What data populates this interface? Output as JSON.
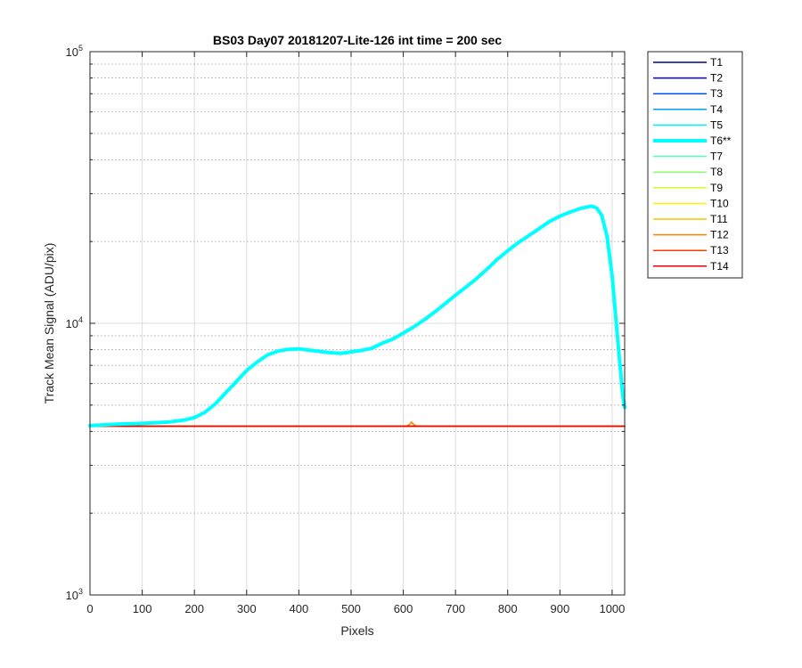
{
  "chart_data": {
    "type": "line",
    "title": "BS03 Day07 20181207-Lite-126 int time = 200 sec",
    "xlabel": "Pixels",
    "ylabel": "Track Mean Signal (ADU/pix)",
    "xlim": [
      0,
      1024
    ],
    "ylim": [
      1000,
      100000
    ],
    "y_scale": "log",
    "x_ticks": [
      0,
      100,
      200,
      300,
      400,
      500,
      600,
      700,
      800,
      900,
      1000
    ],
    "y_ticks": [
      {
        "value": 1000,
        "base": "10",
        "exp": "3"
      },
      {
        "value": 10000,
        "base": "10",
        "exp": "4"
      },
      {
        "value": 100000,
        "base": "10",
        "exp": "5"
      }
    ],
    "grid": true,
    "legend_position": "outside-right",
    "highlight_series": "T6**",
    "series": [
      {
        "name": "T1",
        "color": "#00008f",
        "x": [
          0,
          1024
        ],
        "y": [
          4180,
          4180
        ]
      },
      {
        "name": "T2",
        "color": "#0000ef",
        "x": [
          0,
          1024
        ],
        "y": [
          4180,
          4180
        ]
      },
      {
        "name": "T3",
        "color": "#004fff",
        "x": [
          0,
          1024
        ],
        "y": [
          4180,
          4180
        ]
      },
      {
        "name": "T4",
        "color": "#009fff",
        "x": [
          0,
          1024
        ],
        "y": [
          4180,
          4180
        ]
      },
      {
        "name": "T5",
        "color": "#00efff",
        "x": [
          0,
          1024
        ],
        "y": [
          4180,
          4180
        ]
      },
      {
        "name": "T6**",
        "color": "#00ffff",
        "x": [
          0,
          50,
          100,
          150,
          180,
          200,
          220,
          240,
          260,
          280,
          300,
          320,
          340,
          360,
          380,
          400,
          420,
          440,
          460,
          480,
          500,
          520,
          540,
          560,
          580,
          600,
          620,
          640,
          660,
          680,
          700,
          720,
          740,
          760,
          780,
          800,
          820,
          840,
          860,
          880,
          900,
          920,
          940,
          960,
          970,
          980,
          990,
          1000,
          1010,
          1020,
          1024
        ],
        "y": [
          4200,
          4250,
          4280,
          4330,
          4400,
          4500,
          4700,
          5050,
          5550,
          6100,
          6700,
          7200,
          7650,
          7900,
          8020,
          8050,
          7970,
          7880,
          7800,
          7750,
          7850,
          7950,
          8100,
          8450,
          8750,
          9200,
          9700,
          10300,
          11000,
          11800,
          12700,
          13600,
          14600,
          15800,
          17200,
          18500,
          19800,
          21000,
          22300,
          23700,
          24800,
          25700,
          26500,
          27000,
          26600,
          25000,
          21000,
          15000,
          9000,
          5500,
          4900
        ]
      },
      {
        "name": "T7",
        "color": "#4fffaf",
        "x": [
          0,
          1024
        ],
        "y": [
          4180,
          4180
        ]
      },
      {
        "name": "T8",
        "color": "#8fff6f",
        "x": [
          0,
          1024
        ],
        "y": [
          4180,
          4180
        ]
      },
      {
        "name": "T9",
        "color": "#cfff2f",
        "x": [
          0,
          1024
        ],
        "y": [
          4180,
          4180
        ]
      },
      {
        "name": "T10",
        "color": "#ffef00",
        "x": [
          0,
          1024
        ],
        "y": [
          4180,
          4180
        ]
      },
      {
        "name": "T11",
        "color": "#ffbf00",
        "x": [
          0,
          1024
        ],
        "y": [
          4180,
          4180
        ]
      },
      {
        "name": "T12",
        "color": "#ff7f00",
        "x": [
          0,
          605,
          612,
          616,
          620,
          627,
          1024
        ],
        "y": [
          4180,
          4180,
          4240,
          4330,
          4240,
          4180,
          4180
        ]
      },
      {
        "name": "T13",
        "color": "#ff3f00",
        "x": [
          0,
          1024
        ],
        "y": [
          4180,
          4180
        ]
      },
      {
        "name": "T14",
        "color": "#ef0000",
        "x": [
          0,
          1024
        ],
        "y": [
          4180,
          4180
        ]
      }
    ]
  }
}
